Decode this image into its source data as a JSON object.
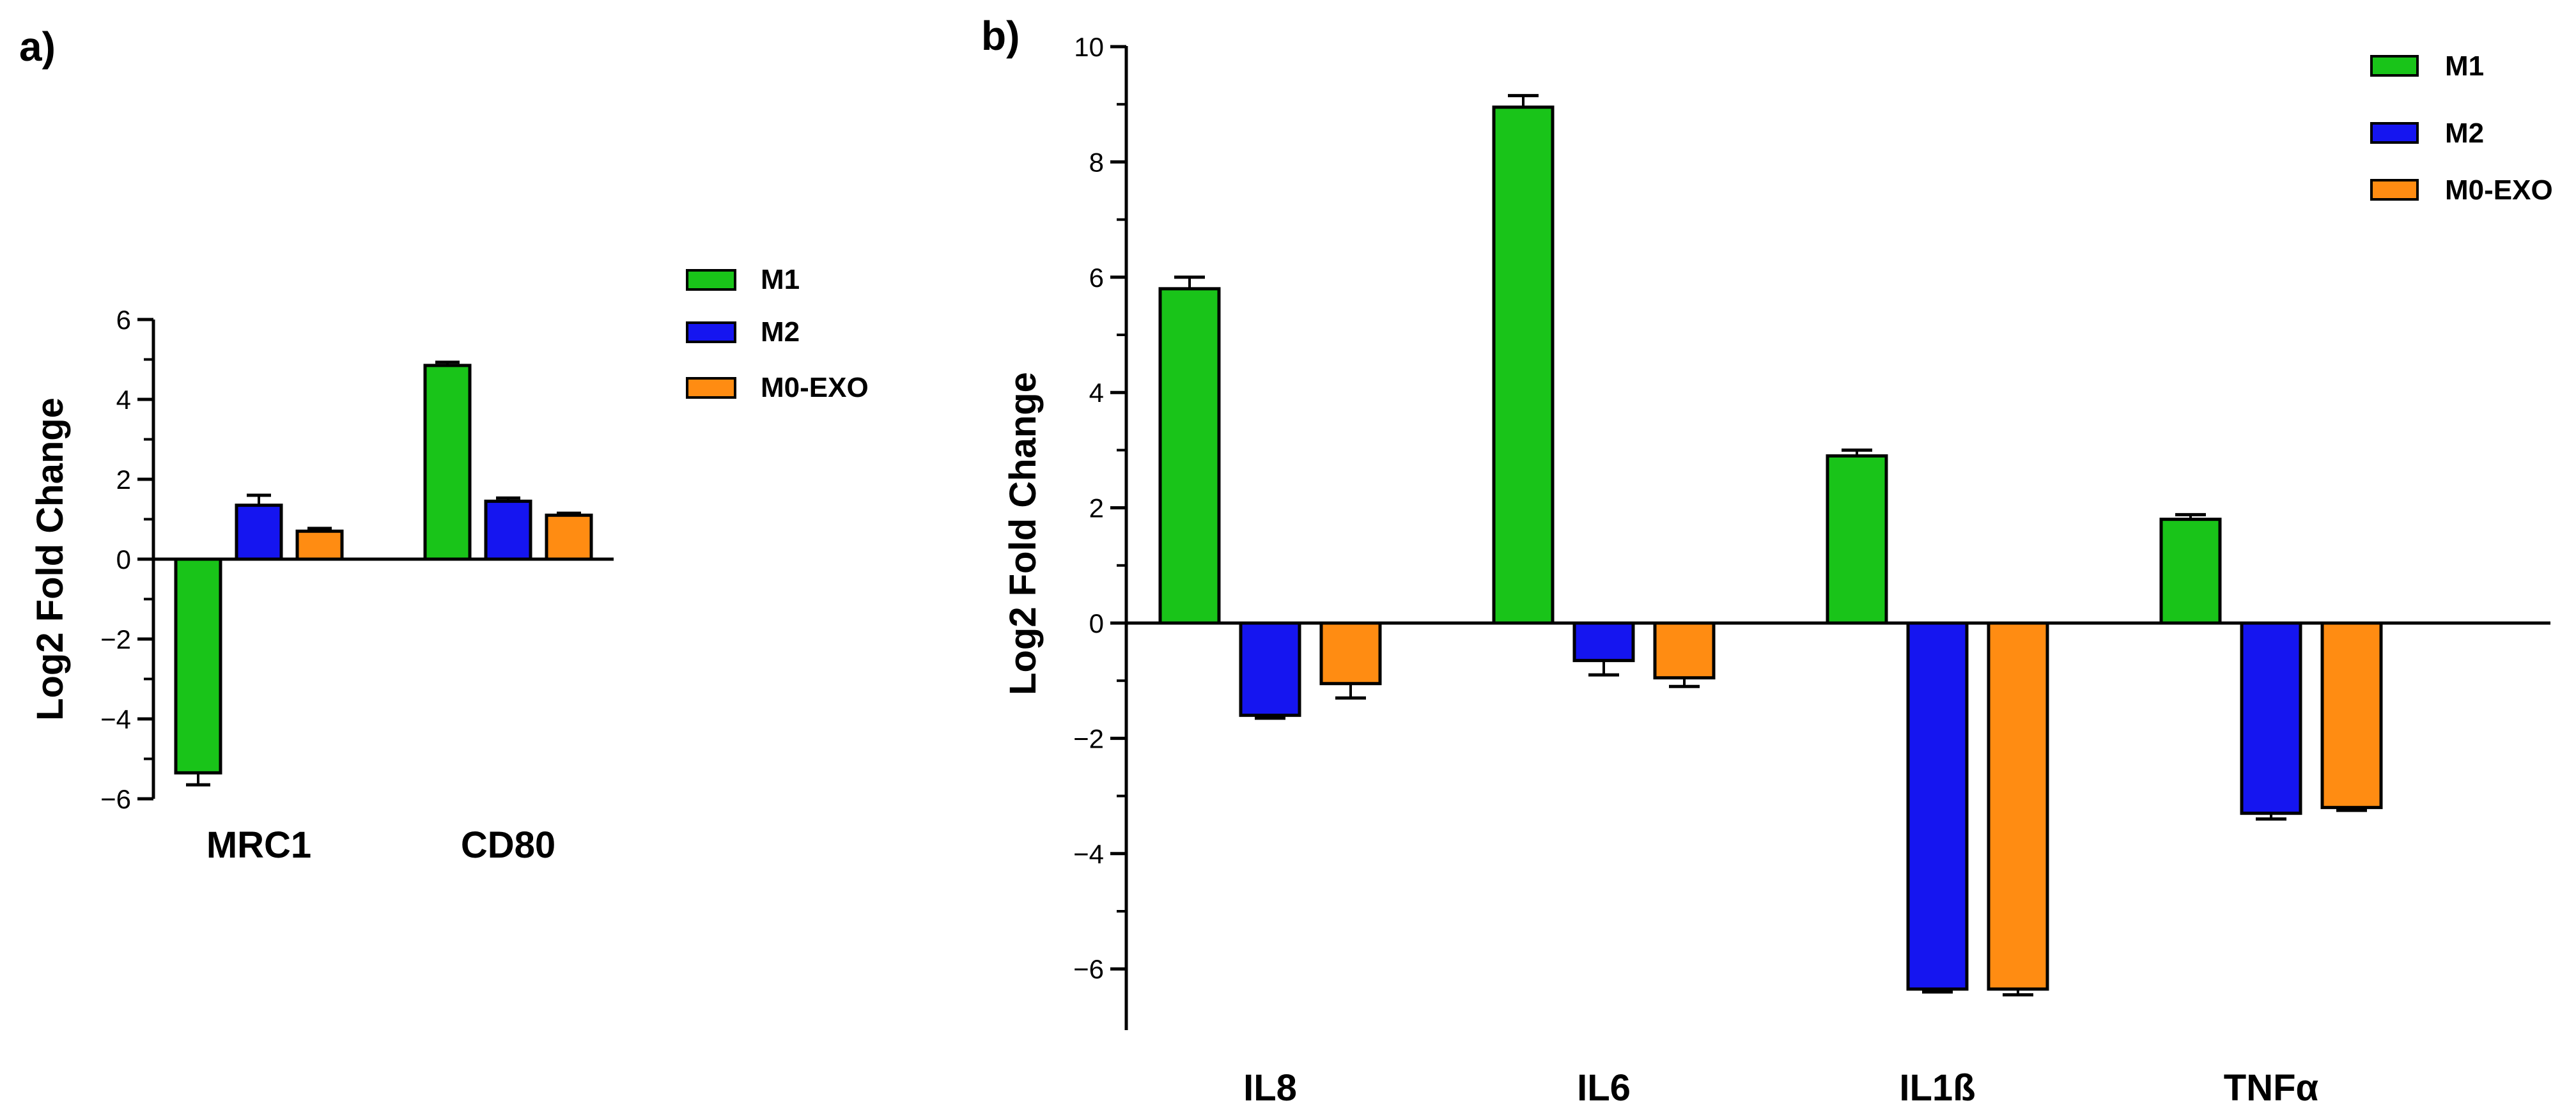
{
  "chart_data": [
    {
      "panel": "a)",
      "type": "bar",
      "ylabel": "Log2 Fold Change",
      "xlabel": "",
      "ylim": [
        -6,
        6
      ],
      "yticks": [
        -6,
        -4,
        -2,
        0,
        2,
        4,
        6
      ],
      "categories": [
        "MRC1",
        "CD80"
      ],
      "series": [
        {
          "name": "M1",
          "color": "#19c419",
          "values": [
            -5.35,
            4.85
          ],
          "errors": [
            0.3,
            0.08
          ]
        },
        {
          "name": "M2",
          "color": "#1515f0",
          "values": [
            1.35,
            1.45
          ],
          "errors": [
            0.25,
            0.08
          ]
        },
        {
          "name": "M0-EXO",
          "color": "#ff8c12",
          "values": [
            0.7,
            1.1
          ],
          "errors": [
            0.07,
            0.05
          ]
        }
      ],
      "legend": "right"
    },
    {
      "panel": "b)",
      "type": "bar",
      "ylabel": "Log2 Fold Change",
      "xlabel": "",
      "ylim": [
        -7,
        10
      ],
      "yticks": [
        -6,
        -4,
        -2,
        0,
        2,
        4,
        6,
        8,
        10
      ],
      "tick_labels": [
        "−6",
        "−4",
        "−2",
        "0",
        "2",
        "4",
        "6",
        "8",
        "10"
      ],
      "categories": [
        "IL8",
        "IL6",
        "IL1ß",
        "TNFα"
      ],
      "series": [
        {
          "name": "M1",
          "color": "#19c419",
          "values": [
            5.8,
            8.95,
            2.9,
            1.8
          ],
          "errors": [
            0.2,
            0.2,
            0.1,
            0.08
          ]
        },
        {
          "name": "M2",
          "color": "#1515f0",
          "values": [
            -1.6,
            -0.65,
            -6.35,
            -3.3
          ],
          "errors": [
            0.05,
            0.25,
            0.05,
            0.1
          ]
        },
        {
          "name": "M0-EXO",
          "color": "#ff8c12",
          "values": [
            -1.05,
            -0.95,
            -6.35,
            -3.2
          ],
          "errors": [
            0.25,
            0.15,
            0.1,
            0.05
          ]
        }
      ],
      "legend": "top-right"
    }
  ]
}
